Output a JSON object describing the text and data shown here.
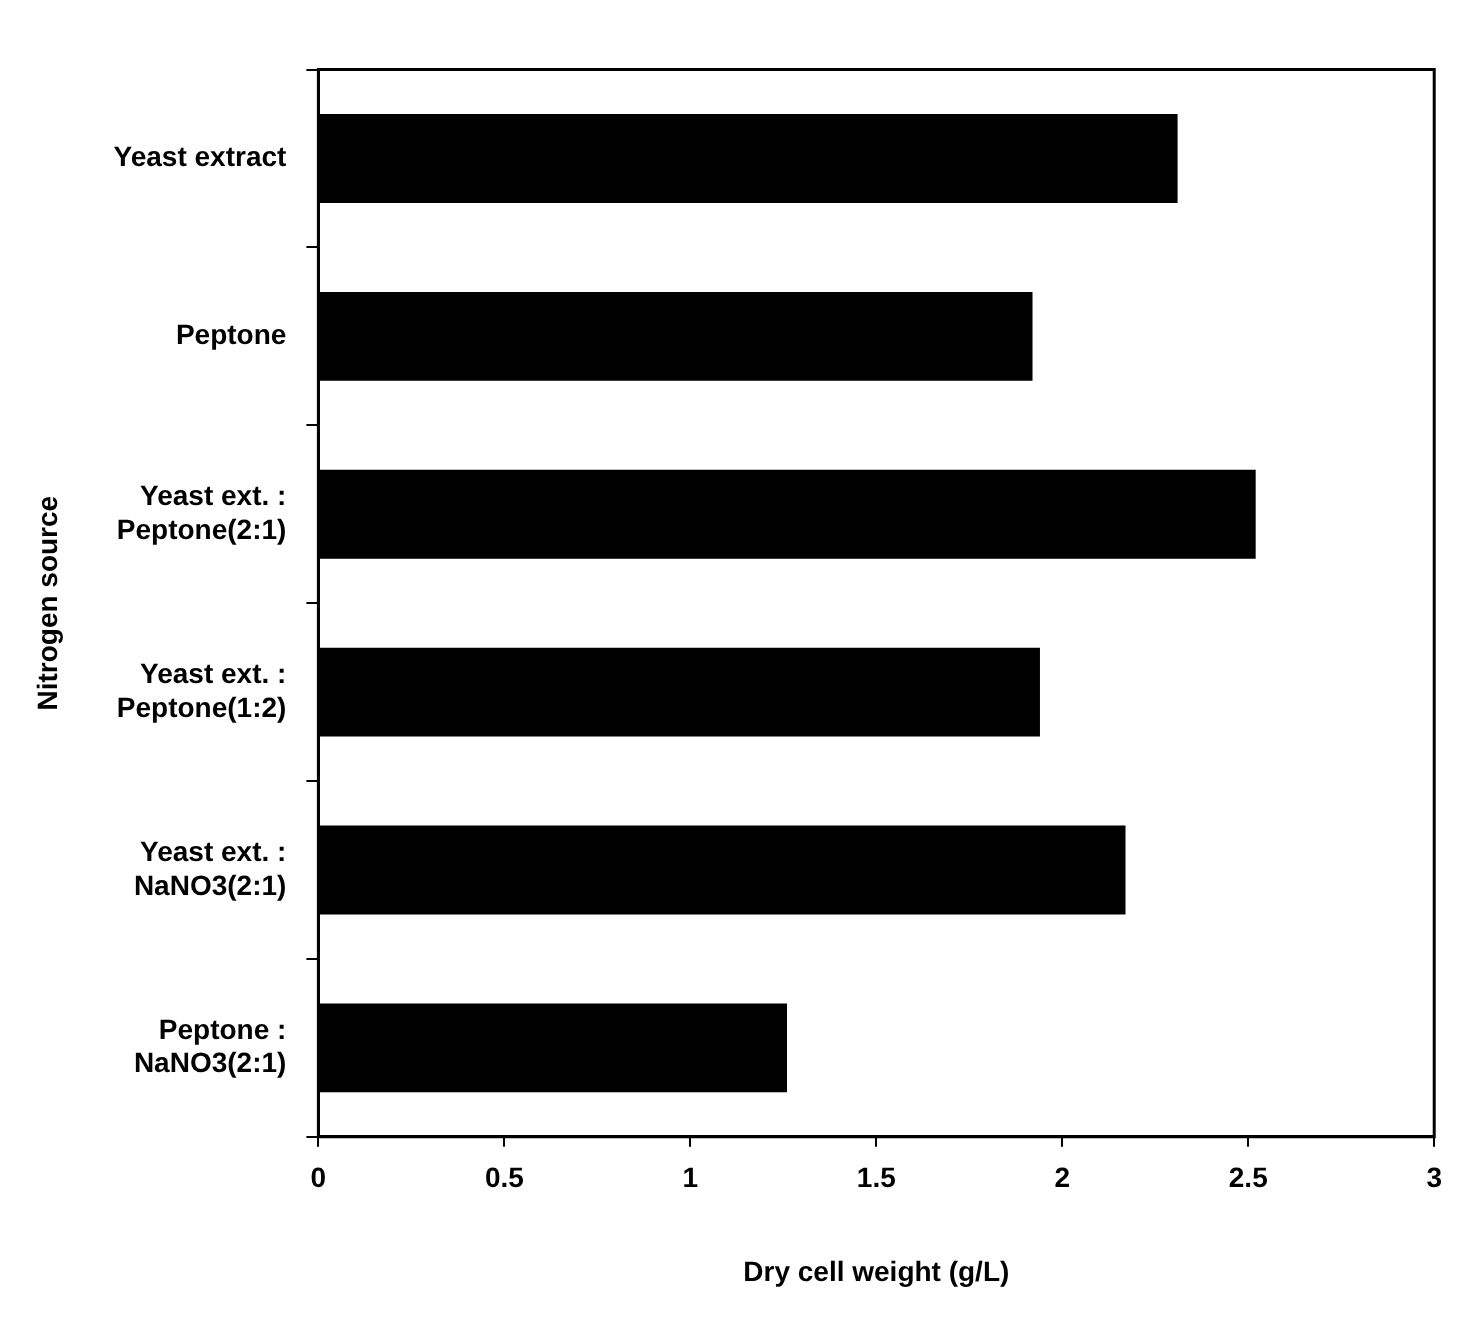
{
  "chart_data": {
    "type": "bar",
    "orientation": "horizontal",
    "xlabel": "Dry cell weight (g/L)",
    "ylabel": "Nitrogen source",
    "categories": [
      "Yeast extract",
      "Peptone",
      "Yeast ext. :\nPeptone(2:1)",
      "Yeast ext. :\nPeptone(1:2)",
      "Yeast ext. :\nNaNO3(2:1)",
      "Peptone :\nNaNO3(2:1)"
    ],
    "values": [
      2.31,
      1.92,
      2.52,
      1.94,
      2.17,
      1.26
    ],
    "color": "#000000",
    "xlim": [
      0,
      3
    ],
    "xticks": [
      0,
      0.5,
      1,
      1.5,
      2,
      2.5,
      3
    ],
    "grid": false,
    "legend": false
  }
}
